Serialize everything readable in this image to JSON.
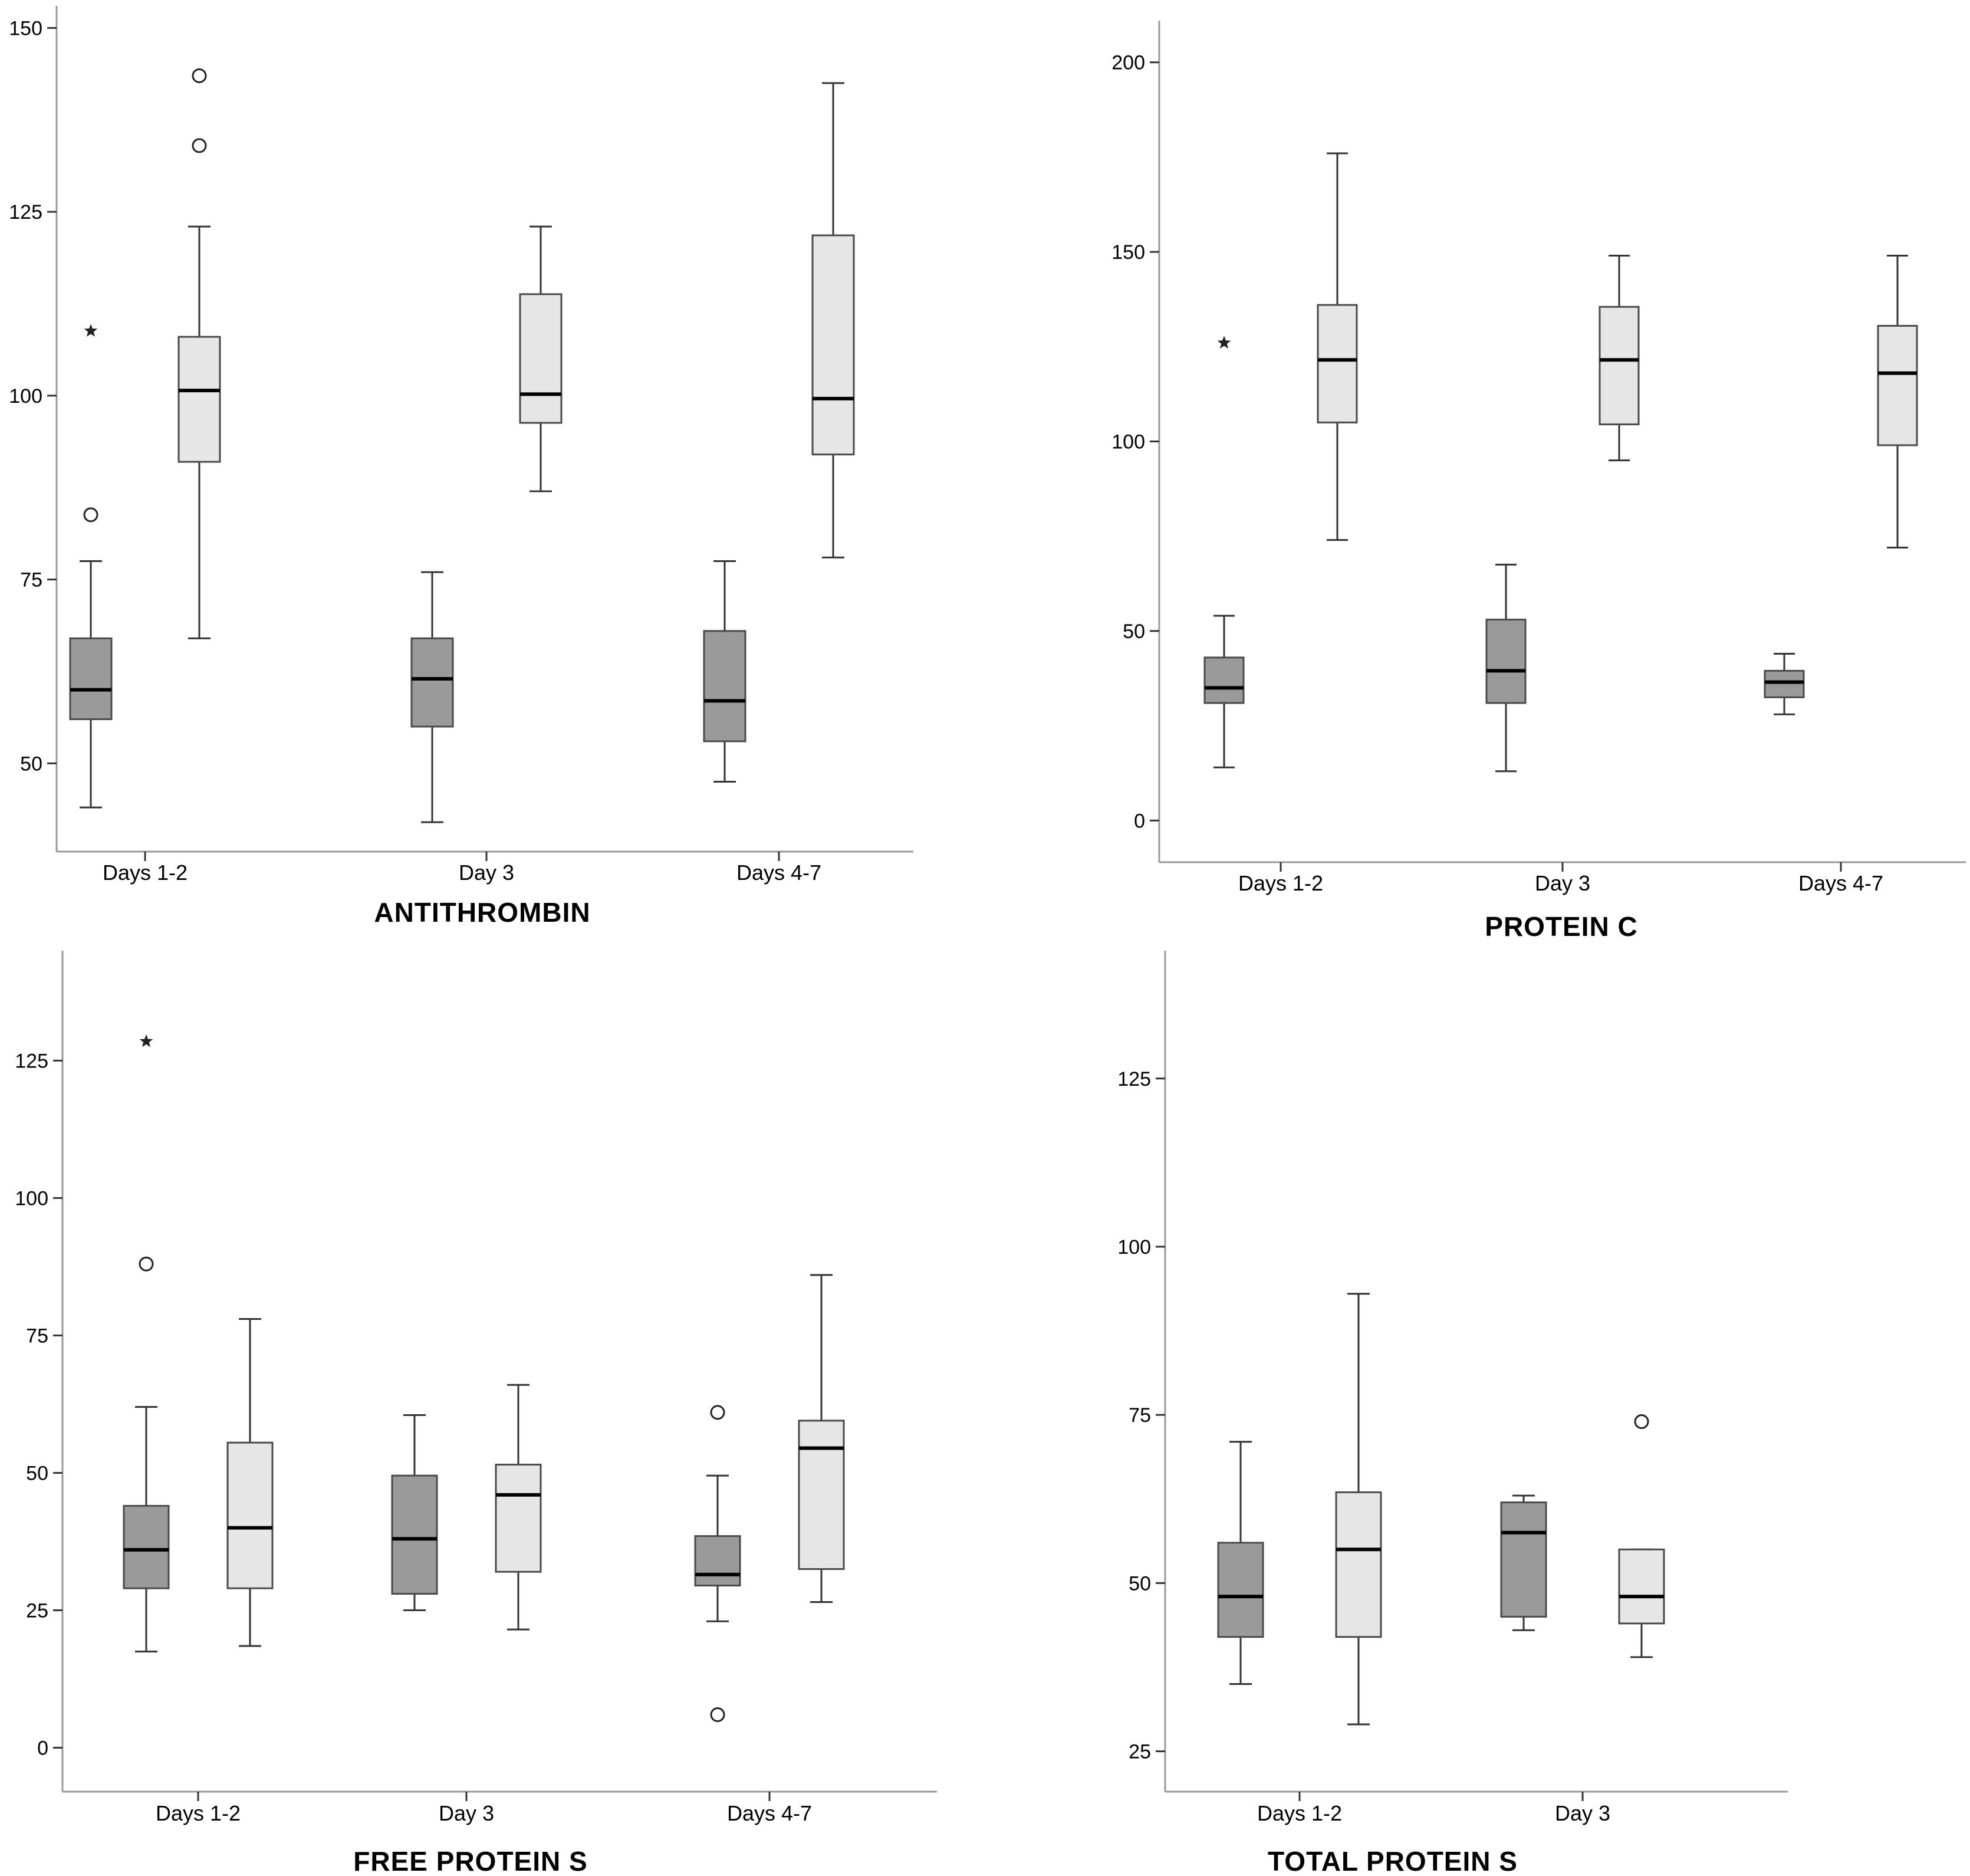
{
  "colors": {
    "group_dark": "#9a9a9a",
    "group_light": "#e6e6e6",
    "box_stroke": "#4a4a4a",
    "whisker_stroke": "#333333",
    "median_stroke": "#000000",
    "axis_stroke": "#999999"
  },
  "chart_data": [
    {
      "type": "boxplot",
      "title": "ANTITHROMBIN",
      "categories": [
        "Days 1-2",
        "Day 3",
        "Days 4-7"
      ],
      "ylim": [
        38,
        153
      ],
      "yticks": [
        50,
        75,
        100,
        125,
        150
      ],
      "grid": false,
      "series": [
        {
          "fill": "dark",
          "boxes": [
            {
              "min": 44,
              "q1": 56,
              "median": 60,
              "q3": 67,
              "max": 77.5,
              "outliers": [
                {
                  "value": 83.8,
                  "marker": "circle"
                },
                {
                  "value": 108.8,
                  "marker": "star"
                }
              ]
            },
            {
              "min": 42,
              "q1": 55,
              "median": 61.5,
              "q3": 67,
              "max": 76,
              "outliers": []
            },
            {
              "min": 47.5,
              "q1": 53,
              "median": 58.5,
              "q3": 68,
              "max": 77.5,
              "outliers": []
            }
          ]
        },
        {
          "fill": "light",
          "boxes": [
            {
              "min": 67,
              "q1": 91,
              "median": 100.7,
              "q3": 108,
              "max": 123,
              "outliers": [
                {
                  "value": 134,
                  "marker": "circle"
                },
                {
                  "value": 143.5,
                  "marker": "circle"
                }
              ]
            },
            {
              "min": 87,
              "q1": 96.3,
              "median": 100.2,
              "q3": 113.8,
              "max": 123,
              "outliers": []
            },
            {
              "min": 78,
              "q1": 92,
              "median": 99.6,
              "q3": 121.8,
              "max": 142.5,
              "outliers": []
            }
          ]
        }
      ]
    },
    {
      "type": "boxplot",
      "title": "PROTEIN C",
      "categories": [
        "Days 1-2",
        "Day 3",
        "Days 4-7"
      ],
      "ylim": [
        -11,
        211
      ],
      "yticks": [
        0,
        50,
        100,
        150,
        200
      ],
      "grid": false,
      "series": [
        {
          "fill": "dark",
          "boxes": [
            {
              "min": 14,
              "q1": 31,
              "median": 35,
              "q3": 43,
              "max": 54,
              "outliers": [
                {
                  "value": 126,
                  "marker": "star"
                }
              ]
            },
            {
              "min": 13,
              "q1": 31,
              "median": 39.5,
              "q3": 53,
              "max": 67.5,
              "outliers": []
            },
            {
              "min": 28,
              "q1": 32.5,
              "median": 36.5,
              "q3": 39.5,
              "max": 44,
              "outliers": []
            }
          ]
        },
        {
          "fill": "light",
          "boxes": [
            {
              "min": 74,
              "q1": 105,
              "median": 121.5,
              "q3": 136,
              "max": 176,
              "outliers": []
            },
            {
              "min": 95,
              "q1": 104.5,
              "median": 121.5,
              "q3": 135.5,
              "max": 149,
              "outliers": []
            },
            {
              "min": 72,
              "q1": 99,
              "median": 118,
              "q3": 130.5,
              "max": 149,
              "outliers": []
            }
          ]
        }
      ]
    },
    {
      "type": "boxplot",
      "title": "FREE PROTEIN S",
      "categories": [
        "Days 1-2",
        "Day 3",
        "Days 4-7"
      ],
      "ylim": [
        -8,
        145
      ],
      "yticks": [
        0,
        25,
        50,
        75,
        100,
        125
      ],
      "grid": false,
      "series": [
        {
          "fill": "dark",
          "boxes": [
            {
              "min": 17.5,
              "q1": 29,
              "median": 36,
              "q3": 44,
              "max": 62,
              "outliers": [
                {
                  "value": 88,
                  "marker": "circle"
                },
                {
                  "value": 128.5,
                  "marker": "star"
                }
              ]
            },
            {
              "min": 25,
              "q1": 28,
              "median": 38,
              "q3": 49.5,
              "max": 60.5,
              "outliers": []
            },
            {
              "min": 23,
              "q1": 29.5,
              "median": 31.5,
              "q3": 38.5,
              "max": 49.5,
              "outliers": [
                {
                  "value": 6,
                  "marker": "circle"
                },
                {
                  "value": 61,
                  "marker": "circle"
                }
              ]
            }
          ]
        },
        {
          "fill": "light",
          "boxes": [
            {
              "min": 18.5,
              "q1": 29,
              "median": 40,
              "q3": 55.5,
              "max": 78,
              "outliers": []
            },
            {
              "min": 21.5,
              "q1": 32,
              "median": 46,
              "q3": 51.5,
              "max": 66,
              "outliers": []
            },
            {
              "min": 26.5,
              "q1": 32.5,
              "median": 54.5,
              "q3": 59.5,
              "max": 86,
              "outliers": []
            }
          ]
        }
      ]
    },
    {
      "type": "boxplot",
      "title": "TOTAL PROTEIN S",
      "categories": [
        "Days 1-2",
        "Day 3"
      ],
      "ylim": [
        19,
        144
      ],
      "yticks": [
        25,
        50,
        75,
        100,
        125
      ],
      "grid": false,
      "series": [
        {
          "fill": "dark",
          "boxes": [
            {
              "min": 35,
              "q1": 42,
              "median": 48,
              "q3": 56,
              "max": 71,
              "outliers": []
            },
            {
              "min": 43,
              "q1": 45,
              "median": 57.5,
              "q3": 62,
              "max": 63,
              "outliers": []
            }
          ]
        },
        {
          "fill": "light",
          "boxes": [
            {
              "min": 29,
              "q1": 42,
              "median": 55,
              "q3": 63.5,
              "max": 93,
              "outliers": []
            },
            {
              "min": 39,
              "q1": 44,
              "median": 48,
              "q3": 55,
              "max": 55,
              "outliers": [
                {
                  "value": 74,
                  "marker": "circle"
                }
              ]
            }
          ]
        }
      ]
    }
  ]
}
